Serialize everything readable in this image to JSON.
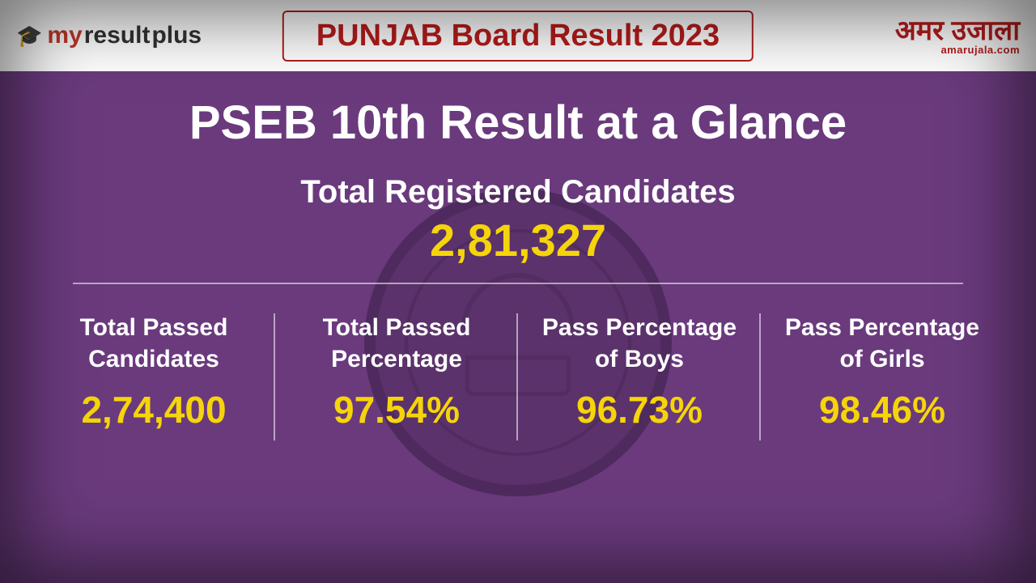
{
  "header": {
    "logo_left_my": "my",
    "logo_left_result": "result",
    "logo_left_plus": "plus",
    "banner_title": "PUNJAB Board Result 2023",
    "logo_right_top": "अमर उजाला",
    "logo_right_bottom": "amarujala.com"
  },
  "main": {
    "title": "PSEB 10th Result at a Glance",
    "registered_label": "Total Registered Candidates",
    "registered_value": "2,81,327"
  },
  "stats": [
    {
      "label": "Total Passed Candidates",
      "value": "2,74,400"
    },
    {
      "label": "Total Passed Percentage",
      "value": "97.54%"
    },
    {
      "label": "Pass Percentage of Boys",
      "value": "96.73%"
    },
    {
      "label": "Pass Percentage of Girls",
      "value": "98.46%"
    }
  ],
  "style": {
    "background_color": "#6a3a7d",
    "header_bg": "#ffffff",
    "banner_border": "#b71c1c",
    "banner_text": "#b71c1c",
    "title_color": "#ffffff",
    "label_color": "#ffffff",
    "value_color": "#f5d50a",
    "divider_color": "rgba(255,255,255,0.55)",
    "title_fontsize": 58,
    "registered_label_fontsize": 40,
    "registered_value_fontsize": 56,
    "stat_label_fontsize": 30,
    "stat_value_fontsize": 46,
    "banner_fontsize": 38
  }
}
